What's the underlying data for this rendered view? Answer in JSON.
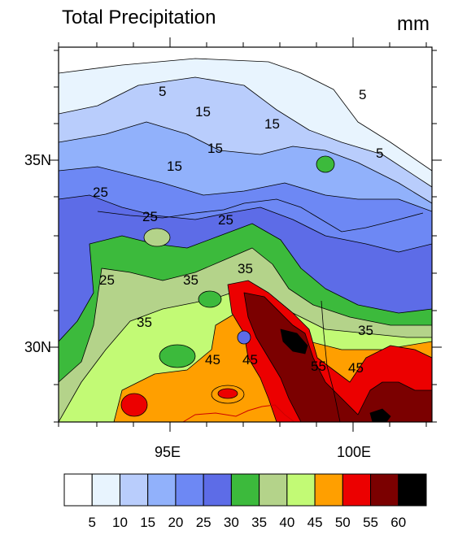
{
  "map": {
    "title": "Total Precipitation",
    "units": "mm",
    "lat_labels": [
      "35N",
      "30N"
    ],
    "lon_labels": [
      "95E",
      "100E"
    ],
    "contour_labels": [
      "5",
      "5",
      "5",
      "15",
      "15",
      "15",
      "15",
      "25",
      "25",
      "25",
      "25",
      "35",
      "35",
      "35",
      "35",
      "45",
      "45",
      "45",
      "55"
    ],
    "colors": {
      "c0": "#ffffff",
      "c1": "#e8f4fe",
      "c2": "#b9cdfc",
      "c3": "#91b1fb",
      "c4": "#6d88f4",
      "c5": "#5d6ce7",
      "c6": "#3cba3c",
      "c7": "#b4d38a",
      "c8": "#c2fa75",
      "c9": "#ff9f00",
      "c10": "#ec0000",
      "c11": "#7b0000",
      "c12": "#000000"
    }
  },
  "legend": {
    "labels": [
      "5",
      "10",
      "15",
      "20",
      "25",
      "30",
      "35",
      "40",
      "45",
      "50",
      "55",
      "60"
    ],
    "colors": [
      "#ffffff",
      "#e8f4fe",
      "#b9cdfc",
      "#91b1fb",
      "#6d88f4",
      "#5d6ce7",
      "#3cba3c",
      "#b4d38a",
      "#c2fa75",
      "#ff9f00",
      "#ec0000",
      "#7b0000",
      "#000000"
    ]
  }
}
